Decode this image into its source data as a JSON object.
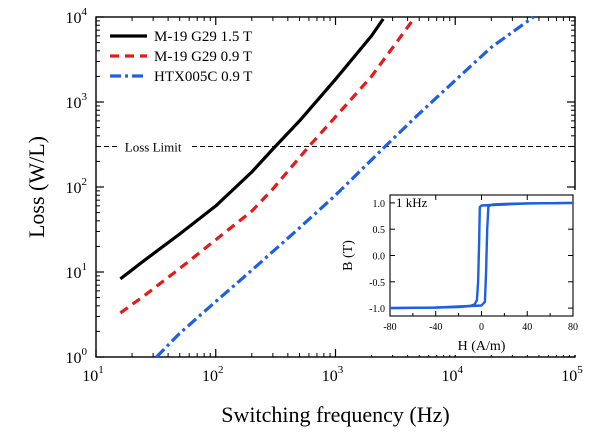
{
  "chart_data": [
    {
      "type": "line",
      "xscale": "log",
      "yscale": "log",
      "xlabel": "Switching frequency (Hz)",
      "ylabel": "Loss (W/L)",
      "xlim": [
        10,
        100000
      ],
      "ylim": [
        1,
        10000
      ],
      "xticks": [
        {
          "value": 10,
          "base": "10",
          "exp": "1"
        },
        {
          "value": 100,
          "base": "10",
          "exp": "2"
        },
        {
          "value": 1000,
          "base": "10",
          "exp": "3"
        },
        {
          "value": 10000,
          "base": "10",
          "exp": "4"
        },
        {
          "value": 100000,
          "base": "10",
          "exp": "5"
        }
      ],
      "yticks": [
        {
          "value": 1,
          "base": "10",
          "exp": "0"
        },
        {
          "value": 10,
          "base": "10",
          "exp": "1"
        },
        {
          "value": 100,
          "base": "10",
          "exp": "2"
        },
        {
          "value": 1000,
          "base": "10",
          "exp": "3"
        },
        {
          "value": 10000,
          "base": "10",
          "exp": "4"
        }
      ],
      "legend_position": "top-left",
      "series": [
        {
          "name": "M-19 G29 1.5 T",
          "color": "#000000",
          "dash": "solid",
          "x": [
            16,
            25,
            50,
            100,
            200,
            300,
            500,
            1000,
            2000,
            2500
          ],
          "y": [
            8.3,
            13.5,
            28,
            60,
            150,
            280,
            600,
            1850,
            6000,
            9500
          ]
        },
        {
          "name": "M-19 G29 0.9 T",
          "color": "#e41a1c",
          "dash": "dashed",
          "x": [
            16,
            25,
            50,
            100,
            200,
            300,
            600,
            1000,
            2000,
            4500
          ],
          "y": [
            3.3,
            5.2,
            11,
            24,
            52,
            95,
            300,
            670,
            2000,
            9500
          ]
        },
        {
          "name": "HTX005C 0.9 T",
          "color": "#1f5fe0",
          "dash": "dashdot",
          "x": [
            32,
            50,
            100,
            200,
            500,
            1000,
            2600,
            5000,
            10000,
            20000,
            45000
          ],
          "y": [
            1,
            1.9,
            4.5,
            10.5,
            33,
            80,
            300,
            730,
            1800,
            4400,
            10000
          ]
        }
      ],
      "annotations": [
        {
          "text": "Loss Limit",
          "y": 300,
          "style": "dashed"
        }
      ]
    },
    {
      "type": "line",
      "title": "1 kHz",
      "xlabel": "H (A/m)",
      "ylabel": "B (T)",
      "xlim": [
        -80,
        80
      ],
      "ylim": [
        -1.15,
        1.15
      ],
      "xticks": [
        -80,
        -40,
        0,
        40,
        80
      ],
      "xticklabels": [
        "-80",
        "-40",
        "0",
        "40",
        "80"
      ],
      "yticks": [
        -1,
        -0.5,
        0,
        0.5,
        1
      ],
      "yticklabels": [
        "-1.0",
        "-0.5",
        "0.0",
        "0.5",
        "1.0"
      ],
      "series": [
        {
          "color": "#1f5fe0",
          "x": [
            -80,
            -40,
            -20,
            -10,
            -6,
            -4,
            -3,
            -2,
            -1.5,
            0,
            20,
            40,
            80
          ],
          "y": [
            -1.0,
            -0.99,
            -0.98,
            -0.96,
            -0.93,
            -0.85,
            -0.5,
            0.3,
            0.92,
            0.95,
            0.97,
            0.99,
            1.0
          ]
        },
        {
          "color": "#1f5fe0",
          "x": [
            80,
            40,
            20,
            10,
            8,
            6,
            5,
            4,
            3,
            0,
            -20,
            -40,
            -80
          ],
          "y": [
            1.0,
            0.99,
            0.98,
            0.97,
            0.96,
            0.93,
            0.5,
            -0.3,
            -0.88,
            -0.95,
            -0.97,
            -0.99,
            -1.0
          ]
        }
      ]
    }
  ]
}
